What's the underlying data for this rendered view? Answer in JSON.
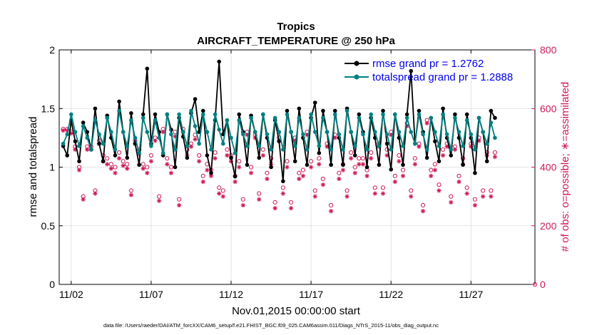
{
  "chart_data": {
    "type": "line",
    "title_line1": "Tropics",
    "title_line2": "AIRCRAFT_TEMPERATURE @ 250 hPa",
    "xlabel": "Nov.01,2015 00:00:00 start",
    "ylabel_left": "rmse and totalspread",
    "ylabel_right": "# of obs: o=possible; ∗=assimilated",
    "footnote": "data file: /Users/raeder/DAI/ATM_forcXX/CAM6_setup/f.e21.FHIST_BGC.f09_025.CAM6assim.011/Diags_NTrS_2015-11/obs_diag_output.nc",
    "x_tick_labels": [
      "11/02",
      "11/07",
      "11/12",
      "11/17",
      "11/22",
      "11/27"
    ],
    "x_tick_days": [
      2,
      7,
      12,
      17,
      22,
      27
    ],
    "x_range_days": [
      1.25,
      31.0
    ],
    "ylim_left": [
      0,
      2
    ],
    "y_ticks_left": [
      "0",
      "0.5",
      "1",
      "1.5",
      "2"
    ],
    "ylim_right": [
      0,
      800
    ],
    "y_ticks_right": [
      "0",
      "200",
      "400",
      "600",
      "800"
    ],
    "grid": true,
    "legend_position": "top-right",
    "colors": {
      "rmse": "#000000",
      "spread": "#008080",
      "obs": "#cc1a55"
    },
    "series": [
      {
        "name": "rmse grand pr = 1.2762",
        "axis": "left",
        "values": [
          1.18,
          1.1,
          1.4,
          1.22,
          1.05,
          1.38,
          1.3,
          1.15,
          1.5,
          1.2,
          1.05,
          1.44,
          1.25,
          1.1,
          1.56,
          1.3,
          1.08,
          1.46,
          1.2,
          1.02,
          1.45,
          1.84,
          1.2,
          1.45,
          1.3,
          1.1,
          1.45,
          1.32,
          1.0,
          1.42,
          1.26,
          1.08,
          1.46,
          1.58,
          1.3,
          1.48,
          1.1,
          0.95,
          1.4,
          1.9,
          1.28,
          1.4,
          1.08,
          0.92,
          1.45,
          1.3,
          1.02,
          1.44,
          1.3,
          1.08,
          1.45,
          1.25,
          1.0,
          1.4,
          1.22,
          0.88,
          1.48,
          1.3,
          1.05,
          1.5,
          1.25,
          1.02,
          1.42,
          1.55,
          1.12,
          1.48,
          1.3,
          1.02,
          1.48,
          1.25,
          1.02,
          1.5,
          1.3,
          1.1,
          1.45,
          1.3,
          1.0,
          1.42,
          1.25,
          1.02,
          1.48,
          1.2,
          0.98,
          1.45,
          1.25,
          1.02,
          1.45,
          1.82,
          1.2,
          1.48,
          1.3,
          1.08,
          1.42,
          1.22,
          1.05,
          1.5,
          1.25,
          1.1,
          1.45,
          1.25,
          1.02,
          1.45,
          1.25,
          0.95,
          1.42,
          1.3,
          1.05,
          1.48,
          1.42
        ]
      },
      {
        "name": "totalspread grand pr = 1.2888",
        "axis": "left",
        "values": [
          1.2,
          1.28,
          1.45,
          1.3,
          1.18,
          1.35,
          1.25,
          1.15,
          1.4,
          1.28,
          1.2,
          1.42,
          1.3,
          1.15,
          1.48,
          1.3,
          1.18,
          1.4,
          1.25,
          1.12,
          1.42,
          1.3,
          1.18,
          1.4,
          1.25,
          1.12,
          1.45,
          1.28,
          1.15,
          1.45,
          1.3,
          1.18,
          1.48,
          1.35,
          1.2,
          1.45,
          1.3,
          1.15,
          1.45,
          1.32,
          1.2,
          1.4,
          1.25,
          1.12,
          1.4,
          1.28,
          1.18,
          1.42,
          1.3,
          1.18,
          1.45,
          1.28,
          1.15,
          1.42,
          1.3,
          1.15,
          1.45,
          1.3,
          1.18,
          1.42,
          1.28,
          1.15,
          1.45,
          1.3,
          1.18,
          1.42,
          1.3,
          1.15,
          1.45,
          1.28,
          1.15,
          1.48,
          1.3,
          1.18,
          1.42,
          1.28,
          1.15,
          1.45,
          1.3,
          1.18,
          1.45,
          1.28,
          1.15,
          1.45,
          1.3,
          1.18,
          1.42,
          1.3,
          1.2,
          1.45,
          1.28,
          1.15,
          1.42,
          1.3,
          1.18,
          1.45,
          1.28,
          1.15,
          1.42,
          1.3,
          1.18,
          1.4,
          1.28,
          1.15,
          1.42,
          1.3,
          1.2,
          1.38,
          1.25
        ]
      },
      {
        "name": "# of obs possible",
        "axis": "right",
        "values": [
          530,
          530,
          520,
          470,
          400,
          300,
          470,
          470,
          320,
          490,
          440,
          430,
          410,
          400,
          450,
          420,
          410,
          320,
          490,
          460,
          410,
          400,
          440,
          500,
          300,
          530,
          430,
          400,
          520,
          290,
          530,
          460,
          480,
          510,
          440,
          370,
          410,
          390,
          450,
          330,
          320,
          460,
          440,
          370,
          420,
          290,
          520,
          400,
          510,
          310,
          460,
          380,
          430,
          280,
          500,
          330,
          420,
          280,
          500,
          380,
          390,
          520,
          420,
          320,
          430,
          360,
          480,
          270,
          510,
          380,
          410,
          320,
          450,
          400,
          430,
          430,
          390,
          450,
          330,
          480,
          330,
          460,
          520,
          370,
          440,
          390,
          550,
          320,
          430,
          480,
          270,
          560,
          390,
          410,
          340,
          460,
          480,
          300,
          470,
          370,
          430,
          330,
          480,
          290,
          500,
          320,
          450,
          320,
          450
        ]
      },
      {
        "name": "# of obs assimilated",
        "axis": "right",
        "values": [
          525,
          525,
          515,
          460,
          390,
          290,
          460,
          460,
          310,
          480,
          420,
          410,
          395,
          380,
          430,
          405,
          395,
          305,
          480,
          445,
          395,
          380,
          420,
          490,
          285,
          520,
          410,
          380,
          505,
          270,
          520,
          440,
          470,
          495,
          420,
          350,
          390,
          370,
          430,
          310,
          300,
          440,
          420,
          350,
          400,
          270,
          510,
          380,
          500,
          290,
          440,
          360,
          410,
          260,
          490,
          310,
          400,
          260,
          490,
          360,
          370,
          510,
          400,
          300,
          410,
          340,
          470,
          250,
          500,
          360,
          390,
          300,
          430,
          380,
          410,
          410,
          370,
          430,
          310,
          470,
          310,
          440,
          510,
          350,
          420,
          370,
          540,
          300,
          410,
          470,
          250,
          550,
          370,
          390,
          320,
          440,
          470,
          280,
          460,
          350,
          410,
          310,
          470,
          270,
          490,
          300,
          440,
          300,
          435
        ]
      }
    ]
  }
}
